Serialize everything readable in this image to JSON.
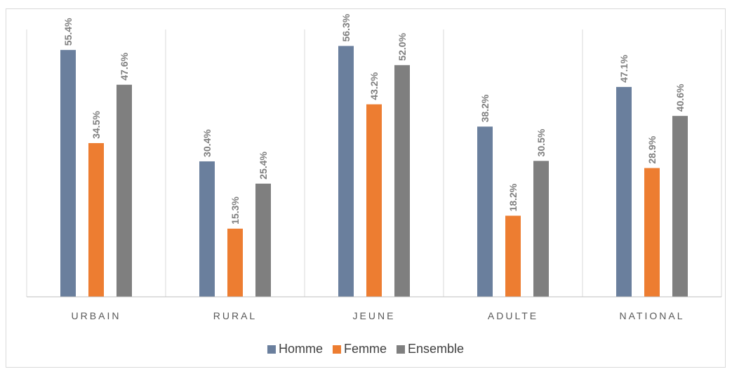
{
  "chart_data": {
    "type": "bar",
    "categories": [
      "URBAIN",
      "RURAL",
      "JEUNE",
      "ADULTE",
      "NATIONAL"
    ],
    "series": [
      {
        "name": "Homme",
        "color": "#6a7f9d",
        "values": [
          55.4,
          30.4,
          56.3,
          38.2,
          47.1
        ],
        "labels": [
          "55.4%",
          "30.4%",
          "56.3%",
          "38.2%",
          "47.1%"
        ]
      },
      {
        "name": "Femme",
        "color": "#ed7d31",
        "values": [
          34.5,
          15.3,
          43.2,
          18.2,
          28.9
        ],
        "labels": [
          "34.5%",
          "15.3%",
          "43.2%",
          "18.2%",
          "28.9%"
        ]
      },
      {
        "name": "Ensemble",
        "color": "#7f7f7f",
        "values": [
          47.6,
          25.4,
          52.0,
          30.5,
          40.6
        ],
        "labels": [
          "47.6%",
          "25.4%",
          "52.0%",
          "30.5%",
          "40.6%"
        ]
      }
    ],
    "ylim": [
      0,
      60
    ],
    "grid": false,
    "category_separators": true,
    "legend_position": "bottom"
  }
}
